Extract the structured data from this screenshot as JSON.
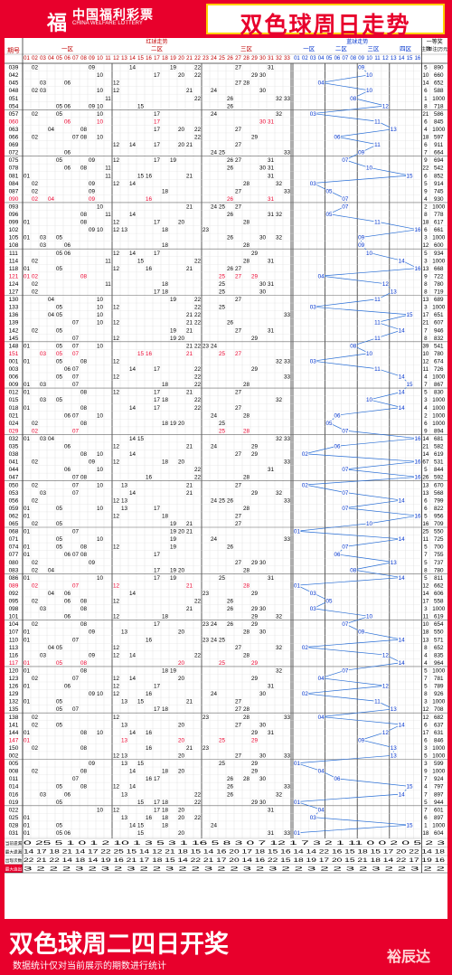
{
  "header": {
    "logo_cn": "中国福利彩票",
    "logo_en": "CHINA WELFARE LOTTERY",
    "title": "双色球周日走势"
  },
  "table": {
    "col_issue": "期号",
    "red_header": "红球走势",
    "zone1": "一区",
    "zone2": "二区",
    "zone3": "三区",
    "blue_header": "蓝球走势",
    "blue_zones": [
      "一区",
      "二区",
      "三区",
      "四区"
    ],
    "prize_header": "一等奖",
    "prize_count_label": "注数",
    "prize_amount_label": "单注(万元)",
    "stat_labels": [
      "当前遗漏",
      "最大遗漏",
      "出现次数",
      "最大连出"
    ],
    "stat_rows": [
      "0 25 5 1 0 1 2 10 1 3 5 3 1 16 5 8 3 0 7 12 1 7 3 2 1 11 0 0 2 0 5 2 3",
      "14 17 18 21 14 17 22 25 15 14 12 21 18 15 14 16 20 17 18 15 16 14 14 22 16 15 18 15 17 20 22 14 18",
      "22 21 22 14 18 14 19 16 21 17 18 15 14 22 21 17 20 14 16 22 15 18 19 17 20 15 21 18 14 22 17 19 16",
      "3 2 2 2 3 2 3 2 3 2 2 3 2 2 3 2 2 3 2 3 2 2 3 2 2 3 2 3 2 2 3 2 2"
    ]
  },
  "rows": [
    {
      "issue": "039",
      "reds": [
        2,
        9,
        14,
        19,
        22,
        27,
        31
      ],
      "blue": 9,
      "n": "5",
      "amt": "890"
    },
    {
      "issue": "042",
      "reds": [
        10,
        17,
        20,
        22,
        29,
        30
      ],
      "blue": 10,
      "n": "10",
      "amt": "660"
    },
    {
      "issue": "045",
      "reds": [
        3,
        6,
        12,
        27,
        28
      ],
      "blue": 4,
      "n": "14",
      "amt": "652"
    },
    {
      "issue": "048",
      "reds": [
        2,
        3,
        10,
        12,
        21,
        24,
        30
      ],
      "blue": 10,
      "n": "6",
      "amt": "588"
    },
    {
      "issue": "051",
      "reds": [
        11,
        22,
        26,
        32,
        33
      ],
      "blue": 8,
      "n": "1",
      "amt": "1000"
    },
    {
      "issue": "054",
      "reds": [
        5,
        6,
        9,
        10,
        15,
        26
      ],
      "blue": 12,
      "n": "8",
      "amt": "718"
    },
    {
      "issue": "057",
      "reds": [
        2,
        5,
        10,
        17,
        24,
        32
      ],
      "blue": 3,
      "n": "21",
      "amt": "586"
    },
    {
      "issue": "060",
      "reds": [
        6,
        10,
        17,
        30,
        31
      ],
      "blue": 11,
      "n": "6",
      "amt": "845"
    },
    {
      "issue": "063",
      "reds": [
        4,
        8,
        17,
        20,
        22,
        27
      ],
      "blue": 13,
      "n": "4",
      "amt": "1000"
    },
    {
      "issue": "066",
      "reds": [
        2,
        7,
        8,
        10,
        22,
        29
      ],
      "blue": 6,
      "n": "18",
      "amt": "597"
    },
    {
      "issue": "069",
      "reds": [
        12,
        14,
        17,
        20,
        21,
        27
      ],
      "blue": 11,
      "n": "6",
      "amt": "911"
    },
    {
      "issue": "072",
      "reds": [
        6,
        24,
        25,
        33
      ],
      "blue": 9,
      "n": "7",
      "amt": "664"
    },
    {
      "issue": "075",
      "reds": [
        5,
        9,
        12,
        17,
        19,
        26,
        27,
        31
      ],
      "blue": 7,
      "n": "9",
      "amt": "694"
    },
    {
      "issue": "078",
      "reds": [
        6,
        8,
        11,
        26,
        30,
        31
      ],
      "blue": 10,
      "n": "22",
      "amt": "542"
    },
    {
      "issue": "081",
      "reds": [
        1,
        11,
        15,
        16,
        21,
        31
      ],
      "blue": 15,
      "n": "6",
      "amt": "852"
    },
    {
      "issue": "084",
      "reds": [
        2,
        9,
        12,
        14,
        28,
        32
      ],
      "blue": 3,
      "n": "5",
      "amt": "914"
    },
    {
      "issue": "087",
      "reds": [
        2,
        9,
        18,
        27,
        33
      ],
      "blue": 5,
      "n": "9",
      "amt": "745"
    },
    {
      "issue": "090",
      "reds": [
        2,
        4,
        9,
        16,
        26,
        31
      ],
      "blue": 7,
      "n": "4",
      "amt": "930"
    },
    {
      "issue": "093",
      "reds": [
        10,
        21,
        24,
        25,
        27
      ],
      "blue": 7,
      "n": "2",
      "amt": "1000"
    },
    {
      "issue": "096",
      "reds": [
        8,
        11,
        14,
        26,
        31,
        32
      ],
      "blue": 5,
      "n": "8",
      "amt": "778"
    },
    {
      "issue": "099",
      "reds": [
        1,
        8,
        12,
        17,
        20,
        28
      ],
      "blue": 11,
      "n": "18",
      "amt": "617"
    },
    {
      "issue": "102",
      "reds": [
        9,
        10,
        12,
        13,
        18,
        23
      ],
      "blue": 16,
      "n": "6",
      "amt": "661"
    },
    {
      "issue": "105",
      "reds": [
        1,
        3,
        5,
        26,
        30,
        32
      ],
      "blue": 9,
      "n": "3",
      "amt": "1000"
    },
    {
      "issue": "108",
      "reds": [
        3,
        6,
        18,
        28
      ],
      "blue": 9,
      "n": "12",
      "amt": "600"
    },
    {
      "issue": "111",
      "reds": [
        5,
        6,
        12,
        14,
        17,
        29
      ],
      "blue": 10,
      "n": "5",
      "amt": "934"
    },
    {
      "issue": "114",
      "reds": [
        2,
        11,
        15,
        22,
        28,
        31
      ],
      "blue": 14,
      "n": "3",
      "amt": "1000"
    },
    {
      "issue": "118",
      "reds": [
        1,
        5,
        12,
        16,
        21,
        26,
        27
      ],
      "blue": 16,
      "n": "13",
      "amt": "668"
    },
    {
      "issue": "121",
      "reds": [
        1,
        2,
        8,
        25,
        27,
        29
      ],
      "blue": 4,
      "n": "9",
      "amt": "722"
    },
    {
      "issue": "124",
      "reds": [
        2,
        11,
        18,
        25,
        30,
        31
      ],
      "blue": 12,
      "n": "8",
      "amt": "780"
    },
    {
      "issue": "127",
      "reds": [
        2,
        17,
        18,
        25,
        30
      ],
      "blue": 13,
      "n": "8",
      "amt": "719"
    },
    {
      "issue": "130",
      "reds": [
        4,
        10,
        19,
        22,
        27
      ],
      "blue": 11,
      "n": "13",
      "amt": "689"
    },
    {
      "issue": "133",
      "reds": [
        5,
        10,
        12,
        22,
        25
      ],
      "blue": 3,
      "n": "3",
      "amt": "1000"
    },
    {
      "issue": "136",
      "reds": [
        4,
        5,
        10,
        21,
        22,
        33
      ],
      "blue": 15,
      "n": "17",
      "amt": "651"
    },
    {
      "issue": "139",
      "reds": [
        7,
        10,
        12,
        21,
        22,
        26
      ],
      "blue": 11,
      "n": "21",
      "amt": "607"
    },
    {
      "issue": "142",
      "reds": [
        2,
        5,
        19,
        21,
        27,
        31
      ],
      "blue": 14,
      "n": "7",
      "amt": "946"
    },
    {
      "issue": "145",
      "reds": [
        7,
        12,
        19,
        20,
        29
      ],
      "blue": 11,
      "n": "8",
      "amt": "832"
    },
    {
      "issue": "148",
      "reds": [
        1,
        5,
        7,
        10,
        21,
        22,
        23,
        24
      ],
      "blue": 8,
      "n": "39",
      "amt": "541"
    },
    {
      "issue": "151",
      "reds": [
        3,
        5,
        7,
        15,
        16,
        21,
        25,
        27
      ],
      "blue": 10,
      "n": "10",
      "amt": "780"
    },
    {
      "issue": "001",
      "reds": [
        1,
        5,
        8,
        12,
        32,
        33
      ],
      "blue": 3,
      "n": "12",
      "amt": "674"
    },
    {
      "issue": "003",
      "reds": [
        6,
        7,
        14,
        17,
        22,
        29
      ],
      "blue": 11,
      "n": "11",
      "amt": "726"
    },
    {
      "issue": "006",
      "reds": [
        5,
        7,
        12,
        22,
        33
      ],
      "blue": 14,
      "n": "4",
      "amt": "1000"
    },
    {
      "issue": "009",
      "reds": [
        1,
        3,
        7,
        18,
        22,
        28
      ],
      "blue": 15,
      "n": "7",
      "amt": "867"
    },
    {
      "issue": "012",
      "reds": [
        1,
        8,
        12,
        17,
        21,
        27
      ],
      "blue": 14,
      "n": "5",
      "amt": "830"
    },
    {
      "issue": "015",
      "reds": [
        3,
        5,
        17,
        18,
        22,
        32
      ],
      "blue": 10,
      "n": "3",
      "amt": "1000"
    },
    {
      "issue": "018",
      "reds": [
        1,
        8,
        14,
        17,
        22,
        27
      ],
      "blue": 14,
      "n": "4",
      "amt": "1000"
    },
    {
      "issue": "021",
      "reds": [
        6,
        7,
        10,
        24,
        28
      ],
      "blue": 6,
      "n": "2",
      "amt": "1000"
    },
    {
      "issue": "024",
      "reds": [
        2,
        8,
        18,
        19,
        20,
        25
      ],
      "blue": 5,
      "n": "6",
      "amt": "1000"
    },
    {
      "issue": "029",
      "reds": [
        2,
        7,
        25,
        28
      ],
      "blue": 7,
      "n": "9",
      "amt": "894"
    },
    {
      "issue": "032",
      "reds": [
        1,
        3,
        4,
        14,
        15,
        32,
        33
      ],
      "blue": 16,
      "n": "14",
      "amt": "681"
    },
    {
      "issue": "035",
      "reds": [
        6,
        12,
        21,
        24,
        29
      ],
      "blue": 6,
      "n": "21",
      "amt": "582"
    },
    {
      "issue": "038",
      "reds": [
        8,
        10,
        14,
        27,
        29
      ],
      "blue": 2,
      "n": "14",
      "amt": "619"
    },
    {
      "issue": "041",
      "reds": [
        2,
        9,
        12,
        18,
        20,
        33
      ],
      "blue": 16,
      "n": "67",
      "amt": "531"
    },
    {
      "issue": "044",
      "reds": [
        6,
        10,
        22,
        31
      ],
      "blue": 7,
      "n": "5",
      "amt": "844"
    },
    {
      "issue": "047",
      "reds": [
        7,
        8,
        16,
        22,
        28
      ],
      "blue": 16,
      "n": "26",
      "amt": "592"
    },
    {
      "issue": "050",
      "reds": [
        2,
        7,
        10,
        13,
        21,
        27
      ],
      "blue": 2,
      "n": "13",
      "amt": "670"
    },
    {
      "issue": "053",
      "reds": [
        3,
        7,
        14,
        21,
        29,
        32
      ],
      "blue": 7,
      "n": "13",
      "amt": "568"
    },
    {
      "issue": "056",
      "reds": [
        2,
        12,
        13,
        24,
        25,
        26,
        33
      ],
      "blue": 14,
      "n": "6",
      "amt": "799"
    },
    {
      "issue": "059",
      "reds": [
        1,
        5,
        10,
        13,
        17,
        28
      ],
      "blue": 7,
      "n": "6",
      "amt": "822"
    },
    {
      "issue": "062",
      "reds": [
        1,
        12,
        18,
        27
      ],
      "blue": 16,
      "n": "5",
      "amt": "956"
    },
    {
      "issue": "065",
      "reds": [
        2,
        5,
        19,
        21,
        27
      ],
      "blue": 10,
      "n": "16",
      "amt": "709"
    },
    {
      "issue": "068",
      "reds": [
        1,
        7,
        19,
        20,
        21
      ],
      "blue": 1,
      "n": "25",
      "amt": "550"
    },
    {
      "issue": "071",
      "reds": [
        5,
        10,
        19,
        24,
        33
      ],
      "blue": 14,
      "n": "11",
      "amt": "725"
    },
    {
      "issue": "074",
      "reds": [
        1,
        5,
        8,
        12,
        19,
        26
      ],
      "blue": 7,
      "n": "5",
      "amt": "700"
    },
    {
      "issue": "077",
      "reds": [
        1,
        6,
        7,
        8,
        17
      ],
      "blue": 6,
      "n": "7",
      "amt": "755"
    },
    {
      "issue": "080",
      "reds": [
        2,
        9,
        27,
        29,
        30
      ],
      "blue": 13,
      "n": "5",
      "amt": "737"
    },
    {
      "issue": "083",
      "reds": [
        2,
        4,
        17,
        19,
        20,
        28
      ],
      "blue": 8,
      "n": "8",
      "amt": "780"
    },
    {
      "issue": "086",
      "reds": [
        1,
        10,
        17,
        19,
        25,
        31
      ],
      "blue": 14,
      "n": "5",
      "amt": "811"
    },
    {
      "issue": "089",
      "reds": [
        2,
        7,
        12,
        21,
        28
      ],
      "blue": 1,
      "n": "12",
      "amt": "662"
    },
    {
      "issue": "092",
      "reds": [
        4,
        6,
        14,
        23,
        29
      ],
      "blue": 3,
      "n": "14",
      "amt": "606"
    },
    {
      "issue": "095",
      "reds": [
        2,
        6,
        8,
        12,
        22,
        26
      ],
      "blue": 5,
      "n": "17",
      "amt": "558"
    },
    {
      "issue": "098",
      "reds": [
        3,
        8,
        21,
        26,
        29,
        30
      ],
      "blue": 3,
      "n": "3",
      "amt": "1000"
    },
    {
      "issue": "101",
      "reds": [
        6,
        12,
        18,
        29,
        32
      ],
      "blue": 10,
      "n": "11",
      "amt": "619"
    },
    {
      "issue": "104",
      "reds": [
        2,
        8,
        17,
        23,
        24,
        26,
        29
      ],
      "blue": 7,
      "n": "10",
      "amt": "654"
    },
    {
      "issue": "107",
      "reds": [
        1,
        9,
        13,
        20,
        28,
        30
      ],
      "blue": 9,
      "n": "18",
      "amt": "550"
    },
    {
      "issue": "110",
      "reds": [
        1,
        7,
        16,
        23,
        24,
        25
      ],
      "blue": 14,
      "n": "13",
      "amt": "571"
    },
    {
      "issue": "113",
      "reds": [
        4,
        5,
        12,
        27,
        32
      ],
      "blue": 2,
      "n": "8",
      "amt": "652"
    },
    {
      "issue": "116",
      "reds": [
        3,
        9,
        12,
        14,
        22,
        28
      ],
      "blue": 12,
      "n": "4",
      "amt": "835"
    },
    {
      "issue": "117",
      "reds": [
        1,
        5,
        8,
        20,
        25,
        29
      ],
      "blue": 14,
      "n": "4",
      "amt": "964"
    },
    {
      "issue": "120",
      "reds": [
        1,
        8,
        18,
        19,
        32
      ],
      "blue": 7,
      "n": "5",
      "amt": "1000"
    },
    {
      "issue": "123",
      "reds": [
        2,
        7,
        12,
        14,
        20,
        29
      ],
      "blue": 4,
      "n": "7",
      "amt": "781"
    },
    {
      "issue": "126",
      "reds": [
        1,
        6,
        12,
        17,
        31
      ],
      "blue": 12,
      "n": "5",
      "amt": "789"
    },
    {
      "issue": "129",
      "reds": [
        9,
        10,
        12,
        16,
        24,
        30
      ],
      "blue": 2,
      "n": "8",
      "amt": "926"
    },
    {
      "issue": "132",
      "reds": [
        1,
        5,
        13,
        15,
        21,
        27
      ],
      "blue": 11,
      "n": "3",
      "amt": "1000"
    },
    {
      "issue": "135",
      "reds": [
        5,
        7,
        17,
        18,
        27,
        28
      ],
      "blue": 13,
      "n": "12",
      "amt": "708"
    },
    {
      "issue": "138",
      "reds": [
        2,
        12,
        23,
        28,
        33
      ],
      "blue": 4,
      "n": "12",
      "amt": "682"
    },
    {
      "issue": "141",
      "reds": [
        2,
        5,
        13,
        20,
        27,
        30
      ],
      "blue": 14,
      "n": "6",
      "amt": "637"
    },
    {
      "issue": "144",
      "reds": [
        1,
        8,
        10,
        14,
        16,
        29,
        31
      ],
      "blue": 12,
      "n": "17",
      "amt": "631"
    },
    {
      "issue": "147",
      "reds": [
        1,
        13,
        20,
        25,
        29
      ],
      "blue": 9,
      "n": "6",
      "amt": "846"
    },
    {
      "issue": "150",
      "reds": [
        2,
        8,
        16,
        21,
        23
      ],
      "blue": 13,
      "n": "3",
      "amt": "1000"
    },
    {
      "issue": "002",
      "reds": [
        12,
        13,
        20,
        27,
        30,
        33
      ],
      "blue": 13,
      "n": "5",
      "amt": "1000"
    },
    {
      "issue": "005",
      "reds": [
        9,
        13,
        15,
        25,
        29
      ],
      "blue": 1,
      "n": "3",
      "amt": "599"
    },
    {
      "issue": "008",
      "reds": [
        2,
        8,
        14,
        18,
        20,
        29
      ],
      "blue": 4,
      "n": "9",
      "amt": "1000"
    },
    {
      "issue": "011",
      "reds": [
        7,
        16,
        17,
        26,
        28,
        30
      ],
      "blue": 6,
      "n": "7",
      "amt": "924"
    },
    {
      "issue": "014",
      "reds": [
        5,
        8,
        12,
        14,
        26,
        33
      ],
      "blue": 15,
      "n": "4",
      "amt": "797"
    },
    {
      "issue": "016",
      "reds": [
        3,
        6,
        13,
        22,
        26,
        32
      ],
      "blue": 14,
      "n": "7",
      "amt": "897"
    },
    {
      "issue": "019",
      "reds": [
        5,
        15,
        17,
        18,
        22,
        29,
        30
      ],
      "blue": 1,
      "n": "5",
      "amt": "944"
    },
    {
      "issue": "022",
      "reds": [
        10,
        12,
        17,
        18,
        20,
        31
      ],
      "blue": 4,
      "n": "7",
      "amt": "601"
    },
    {
      "issue": "025",
      "reds": [
        1,
        13,
        16,
        18,
        20,
        22
      ],
      "blue": 3,
      "n": "6",
      "amt": "897"
    },
    {
      "issue": "028",
      "reds": [
        1,
        5,
        14,
        15,
        18,
        24
      ],
      "blue": 15,
      "n": "1",
      "amt": "1000"
    },
    {
      "issue": "031",
      "reds": [
        1,
        5,
        6,
        15,
        20,
        31,
        33
      ],
      "blue": 1,
      "n": "18",
      "amt": "604"
    }
  ],
  "red_issues": [
    "060",
    "090",
    "121",
    "151",
    "029",
    "089",
    "117",
    "147"
  ],
  "footer": {
    "title": "双色球周二四日开奖",
    "note": "数据统计仅对当前展示的期数进行统计",
    "signature": "裕辰达"
  }
}
